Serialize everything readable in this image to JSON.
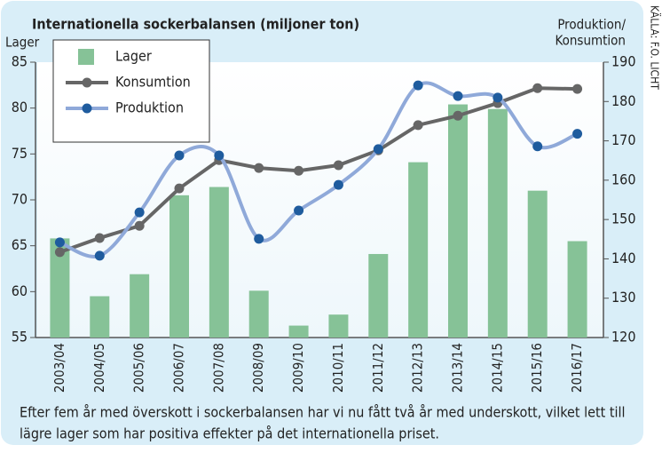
{
  "chart_data": {
    "type": "bar-line",
    "title": "Internationella sockerbalansen (miljoner ton)",
    "ylabel": "Lager",
    "y2label": [
      "Produktion/",
      "Konsumtion"
    ],
    "source": "KÄLLA: F.O. LICHT",
    "caption": [
      "Efter fem år med överskott i sockerbalansen har vi nu fått två år med underskott, vilket lett till",
      "lägre lager som har positiva effekter på det internationella priset."
    ],
    "categories": [
      "2003/04",
      "2004/05",
      "2005/06",
      "2006/07",
      "2007/08",
      "2008/09",
      "2009/10",
      "2010/11",
      "2011/12",
      "2012/13",
      "2013/14",
      "2014/15",
      "2015/16",
      "2016/17"
    ],
    "series": [
      {
        "name": "Lager",
        "color": "#86c297",
        "kind": "bar",
        "values": [
          65.8,
          59.5,
          61.9,
          70.5,
          71.4,
          60.1,
          56.3,
          57.5,
          64.1,
          74.1,
          80.4,
          79.9,
          71.0,
          65.5
        ]
      },
      {
        "name": "Konsumtion",
        "color": "#666666",
        "kind": "line",
        "axis": "y2",
        "values": [
          141.7,
          145.3,
          148.4,
          157.9,
          165.1,
          163.1,
          162.4,
          163.8,
          167.6,
          174.0,
          176.4,
          179.6,
          183.4,
          183.2
        ]
      },
      {
        "name": "Produktion",
        "color": "#8fa9d9",
        "marker": "#1f5c9e",
        "kind": "smooth",
        "axis": "y2",
        "values": [
          144.2,
          140.8,
          151.8,
          166.3,
          166.3,
          145.1,
          152.3,
          158.8,
          167.9,
          184.1,
          181.4,
          181.0,
          168.6,
          171.8
        ]
      }
    ],
    "ylim": [
      55,
      85
    ],
    "yticks": [
      55,
      60,
      65,
      70,
      75,
      80,
      85
    ],
    "y2lim": [
      120,
      190
    ],
    "y2ticks": [
      120,
      130,
      140,
      150,
      160,
      170,
      180,
      190
    ]
  }
}
